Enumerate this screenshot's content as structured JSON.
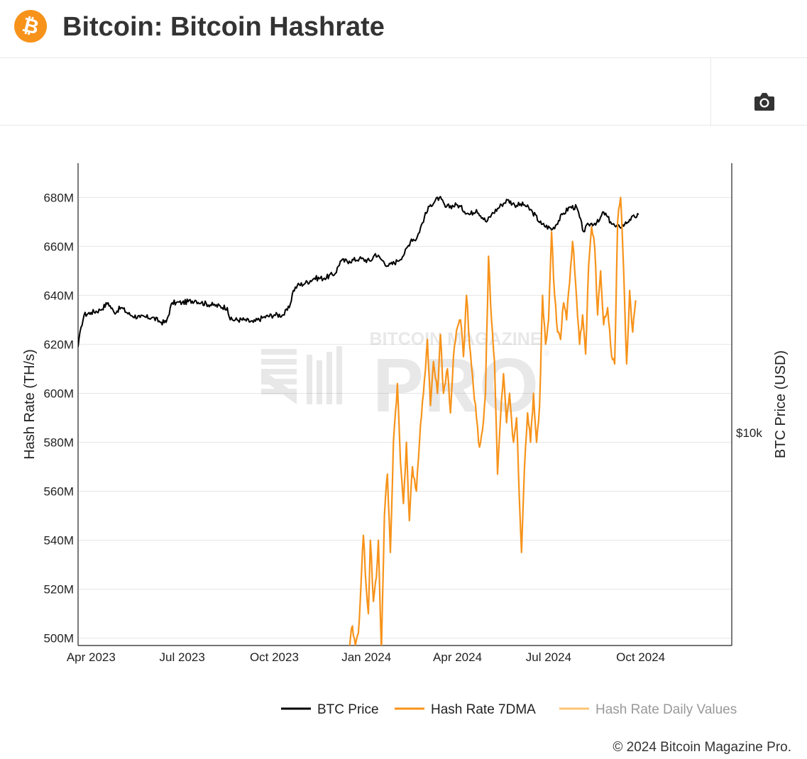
{
  "header": {
    "title": "Bitcoin: Bitcoin Hashrate",
    "logo_glyph": "₿",
    "logo_icon": "bitcoin-logo-icon",
    "logo_color": "#f7931a"
  },
  "toolbar": {
    "camera_icon": "camera-icon"
  },
  "watermark": {
    "top_text": "BITCOIN MAGAZINE",
    "main_text": "PRO",
    "mark": "®"
  },
  "chart_data": {
    "type": "line",
    "ylabel": "Hash Rate (TH/s)",
    "y2label": "BTC Price (USD)",
    "ylim": [
      497,
      694
    ],
    "yticks": [
      500,
      520,
      540,
      560,
      580,
      600,
      620,
      640,
      660,
      680
    ],
    "ytick_labels": [
      "500M",
      "520M",
      "540M",
      "560M",
      "580M",
      "600M",
      "620M",
      "640M",
      "660M",
      "680M"
    ],
    "y2_tick_label": "$10k",
    "xlim": [
      "2023-03-19",
      "2024-12-31"
    ],
    "xticks": [
      "2023-04-01",
      "2023-07-01",
      "2023-10-01",
      "2024-01-01",
      "2024-04-01",
      "2024-07-01",
      "2024-10-01"
    ],
    "xtick_labels": [
      "Apr 2023",
      "Jul 2023",
      "Oct 2023",
      "Jan 2024",
      "Apr 2024",
      "Jul 2024",
      "Oct 2024"
    ],
    "grid": true,
    "legend_position": "bottom-right",
    "series": [
      {
        "name": "BTC Price",
        "color": "#000000",
        "y_axis": "right (log, unlabeled except $10k)",
        "points": [
          [
            "2023-03-19",
            619
          ],
          [
            "2023-03-22",
            627
          ],
          [
            "2023-03-25",
            632
          ],
          [
            "2023-04-01",
            633
          ],
          [
            "2023-04-10",
            634
          ],
          [
            "2023-04-18",
            637
          ],
          [
            "2023-04-24",
            633
          ],
          [
            "2023-05-01",
            635
          ],
          [
            "2023-05-10",
            632
          ],
          [
            "2023-05-20",
            631
          ],
          [
            "2023-06-01",
            631
          ],
          [
            "2023-06-10",
            629
          ],
          [
            "2023-06-15",
            629
          ],
          [
            "2023-06-21",
            637
          ],
          [
            "2023-06-25",
            637
          ],
          [
            "2023-07-01",
            637
          ],
          [
            "2023-07-14",
            638
          ],
          [
            "2023-07-20",
            637
          ],
          [
            "2023-08-01",
            636
          ],
          [
            "2023-08-15",
            635
          ],
          [
            "2023-08-18",
            630
          ],
          [
            "2023-09-01",
            630
          ],
          [
            "2023-09-10",
            629
          ],
          [
            "2023-09-20",
            631
          ],
          [
            "2023-10-01",
            632
          ],
          [
            "2023-10-10",
            632
          ],
          [
            "2023-10-16",
            635
          ],
          [
            "2023-10-20",
            642
          ],
          [
            "2023-10-24",
            644
          ],
          [
            "2023-11-01",
            645
          ],
          [
            "2023-11-10",
            647
          ],
          [
            "2023-11-20",
            647
          ],
          [
            "2023-12-01",
            649
          ],
          [
            "2023-12-06",
            654
          ],
          [
            "2023-12-15",
            654
          ],
          [
            "2023-12-25",
            655
          ],
          [
            "2024-01-05",
            654
          ],
          [
            "2024-01-10",
            657
          ],
          [
            "2024-01-15",
            655
          ],
          [
            "2024-01-23",
            652
          ],
          [
            "2024-02-01",
            654
          ],
          [
            "2024-02-08",
            657
          ],
          [
            "2024-02-15",
            663
          ],
          [
            "2024-02-20",
            663
          ],
          [
            "2024-02-28",
            672
          ],
          [
            "2024-03-05",
            677
          ],
          [
            "2024-03-14",
            680
          ],
          [
            "2024-03-20",
            676
          ],
          [
            "2024-04-01",
            677
          ],
          [
            "2024-04-13",
            673
          ],
          [
            "2024-04-20",
            675
          ],
          [
            "2024-04-30",
            670
          ],
          [
            "2024-05-05",
            673
          ],
          [
            "2024-05-15",
            677
          ],
          [
            "2024-05-21",
            679
          ],
          [
            "2024-05-28",
            677
          ],
          [
            "2024-06-07",
            677
          ],
          [
            "2024-06-15",
            674
          ],
          [
            "2024-06-24",
            669
          ],
          [
            "2024-07-05",
            667
          ],
          [
            "2024-07-15",
            673
          ],
          [
            "2024-07-22",
            676
          ],
          [
            "2024-07-29",
            676
          ],
          [
            "2024-08-05",
            666
          ],
          [
            "2024-08-10",
            669
          ],
          [
            "2024-08-20",
            670
          ],
          [
            "2024-08-25",
            674
          ],
          [
            "2024-09-01",
            670
          ],
          [
            "2024-09-06",
            668
          ],
          [
            "2024-09-10",
            668
          ],
          [
            "2024-09-15",
            669
          ],
          [
            "2024-09-20",
            671
          ],
          [
            "2024-09-25",
            672
          ],
          [
            "2024-09-29",
            673
          ]
        ]
      },
      {
        "name": "Hash Rate 7DMA",
        "color": "#f7931a",
        "y_axis": "left",
        "points": [
          [
            "2023-12-15",
            495
          ],
          [
            "2023-12-18",
            505
          ],
          [
            "2023-12-21",
            497
          ],
          [
            "2023-12-24",
            502
          ],
          [
            "2023-12-27",
            525
          ],
          [
            "2023-12-29",
            542
          ],
          [
            "2024-01-01",
            520
          ],
          [
            "2024-01-03",
            510
          ],
          [
            "2024-01-05",
            540
          ],
          [
            "2024-01-08",
            515
          ],
          [
            "2024-01-11",
            525
          ],
          [
            "2024-01-13",
            540
          ],
          [
            "2024-01-16",
            495
          ],
          [
            "2024-01-19",
            550
          ],
          [
            "2024-01-22",
            567
          ],
          [
            "2024-01-25",
            535
          ],
          [
            "2024-01-28",
            580
          ],
          [
            "2024-02-01",
            604
          ],
          [
            "2024-02-04",
            572
          ],
          [
            "2024-02-07",
            555
          ],
          [
            "2024-02-10",
            580
          ],
          [
            "2024-02-13",
            548
          ],
          [
            "2024-02-16",
            570
          ],
          [
            "2024-02-20",
            560
          ],
          [
            "2024-02-23",
            580
          ],
          [
            "2024-02-27",
            600
          ],
          [
            "2024-03-02",
            622
          ],
          [
            "2024-03-05",
            595
          ],
          [
            "2024-03-08",
            613
          ],
          [
            "2024-03-12",
            600
          ],
          [
            "2024-03-15",
            624
          ],
          [
            "2024-03-18",
            600
          ],
          [
            "2024-03-22",
            610
          ],
          [
            "2024-03-25",
            592
          ],
          [
            "2024-03-28",
            615
          ],
          [
            "2024-04-01",
            627
          ],
          [
            "2024-04-04",
            630
          ],
          [
            "2024-04-07",
            615
          ],
          [
            "2024-04-10",
            640
          ],
          [
            "2024-04-13",
            620
          ],
          [
            "2024-04-17",
            602
          ],
          [
            "2024-04-20",
            590
          ],
          [
            "2024-04-23",
            578
          ],
          [
            "2024-04-26",
            585
          ],
          [
            "2024-04-29",
            600
          ],
          [
            "2024-05-02",
            656
          ],
          [
            "2024-05-05",
            630
          ],
          [
            "2024-05-08",
            613
          ],
          [
            "2024-05-11",
            567
          ],
          [
            "2024-05-14",
            590
          ],
          [
            "2024-05-17",
            608
          ],
          [
            "2024-05-20",
            588
          ],
          [
            "2024-05-23",
            600
          ],
          [
            "2024-05-27",
            580
          ],
          [
            "2024-05-30",
            590
          ],
          [
            "2024-06-02",
            555
          ],
          [
            "2024-06-04",
            535
          ],
          [
            "2024-06-07",
            570
          ],
          [
            "2024-06-10",
            592
          ],
          [
            "2024-06-13",
            580
          ],
          [
            "2024-06-16",
            600
          ],
          [
            "2024-06-19",
            580
          ],
          [
            "2024-06-22",
            595
          ],
          [
            "2024-06-25",
            640
          ],
          [
            "2024-06-28",
            620
          ],
          [
            "2024-07-01",
            630
          ],
          [
            "2024-07-04",
            666
          ],
          [
            "2024-07-07",
            640
          ],
          [
            "2024-07-10",
            625
          ],
          [
            "2024-07-13",
            622
          ],
          [
            "2024-07-16",
            637
          ],
          [
            "2024-07-19",
            630
          ],
          [
            "2024-07-22",
            645
          ],
          [
            "2024-07-25",
            662
          ],
          [
            "2024-07-28",
            645
          ],
          [
            "2024-08-01",
            620
          ],
          [
            "2024-08-04",
            632
          ],
          [
            "2024-08-07",
            616
          ],
          [
            "2024-08-10",
            652
          ],
          [
            "2024-08-13",
            668
          ],
          [
            "2024-08-16",
            660
          ],
          [
            "2024-08-19",
            632
          ],
          [
            "2024-08-22",
            650
          ],
          [
            "2024-08-25",
            628
          ],
          [
            "2024-08-29",
            635
          ],
          [
            "2024-09-02",
            615
          ],
          [
            "2024-09-05",
            612
          ],
          [
            "2024-09-08",
            670
          ],
          [
            "2024-09-11",
            680
          ],
          [
            "2024-09-14",
            650
          ],
          [
            "2024-09-17",
            612
          ],
          [
            "2024-09-20",
            642
          ],
          [
            "2024-09-23",
            625
          ],
          [
            "2024-09-26",
            638
          ]
        ]
      },
      {
        "name": "Hash Rate Daily Values",
        "color": "#fcc573",
        "y_axis": "left",
        "points": []
      }
    ]
  },
  "legend": [
    {
      "label": "BTC Price",
      "color": "#000000",
      "muted": false
    },
    {
      "label": "Hash Rate 7DMA",
      "color": "#f7931a",
      "muted": false
    },
    {
      "label": "Hash Rate Daily Values",
      "color": "#fcc573",
      "muted": true
    }
  ],
  "footer": {
    "copyright": "© 2024 Bitcoin Magazine Pro."
  }
}
